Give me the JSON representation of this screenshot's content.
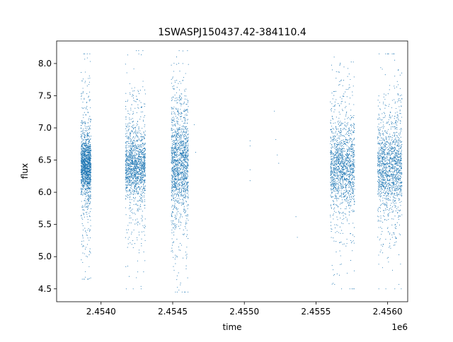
{
  "chart_data": {
    "type": "scatter",
    "title": "1SWASPJ150437.42-384110.4",
    "xlabel": "time",
    "ylabel": "flux",
    "x_offset_label": "1e6",
    "xlim": [
      2.45369,
      2.45614
    ],
    "ylim": [
      4.3,
      8.35
    ],
    "x_ticks": [
      {
        "value": 2.454,
        "label": "2.4540"
      },
      {
        "value": 2.4545,
        "label": "2.4545"
      },
      {
        "value": 2.455,
        "label": "2.4550"
      },
      {
        "value": 2.4555,
        "label": "2.4555"
      },
      {
        "value": 2.456,
        "label": "2.4560"
      }
    ],
    "y_ticks": [
      {
        "value": 4.5,
        "label": "4.5"
      },
      {
        "value": 5.0,
        "label": "5.0"
      },
      {
        "value": 5.5,
        "label": "5.5"
      },
      {
        "value": 6.0,
        "label": "6.0"
      },
      {
        "value": 6.5,
        "label": "6.5"
      },
      {
        "value": 7.0,
        "label": "7.0"
      },
      {
        "value": 7.5,
        "label": "7.5"
      },
      {
        "value": 8.0,
        "label": "8.0"
      }
    ],
    "grid": false,
    "legend": "none",
    "series_color": "#1f77b4",
    "clusters": [
      {
        "x_range": [
          2.45386,
          2.45393
        ],
        "core_y": [
          6.0,
          6.8
        ],
        "y_range": [
          4.65,
          8.15
        ]
      },
      {
        "x_range": [
          2.45417,
          2.45431
        ],
        "core_y": [
          5.95,
          6.85
        ],
        "y_range": [
          4.5,
          8.2
        ]
      },
      {
        "x_range": [
          2.45449,
          2.45461
        ],
        "core_y": [
          5.8,
          7.1
        ],
        "y_range": [
          4.45,
          8.2
        ]
      },
      {
        "x_range": [
          2.4556,
          2.45577
        ],
        "core_y": [
          5.85,
          6.95
        ],
        "y_range": [
          4.5,
          8.1
        ]
      },
      {
        "x_range": [
          2.45593,
          2.4561
        ],
        "core_y": [
          5.85,
          6.95
        ],
        "y_range": [
          4.5,
          8.15
        ]
      }
    ],
    "isolated_points": [
      {
        "x": 2.45465,
        "y": 7.05
      },
      {
        "x": 2.45466,
        "y": 6.62
      },
      {
        "x": 2.45504,
        "y": 6.8
      },
      {
        "x": 2.45504,
        "y": 6.72
      },
      {
        "x": 2.45504,
        "y": 6.35
      },
      {
        "x": 2.45504,
        "y": 6.18
      },
      {
        "x": 2.45521,
        "y": 7.26
      },
      {
        "x": 2.45522,
        "y": 6.82
      },
      {
        "x": 2.45523,
        "y": 6.58
      },
      {
        "x": 2.45524,
        "y": 6.45
      },
      {
        "x": 2.45536,
        "y": 5.62
      },
      {
        "x": 2.45537,
        "y": 5.3
      }
    ]
  }
}
